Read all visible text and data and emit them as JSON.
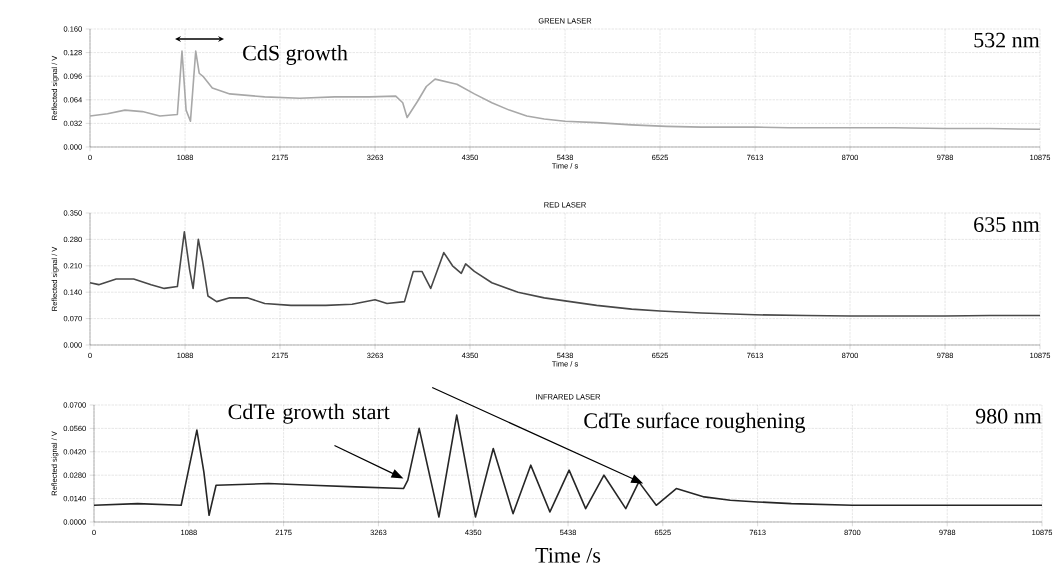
{
  "chart_data": [
    {
      "type": "line",
      "title": "GREEN LASER",
      "xlabel": "Time / s",
      "ylabel": "Reflected signal / V",
      "grid": true,
      "marker": "none",
      "line_style": "solid",
      "xlim": [
        0,
        10875
      ],
      "xticks": [
        0,
        1088,
        2175,
        3263,
        4350,
        5438,
        6525,
        7613,
        8700,
        9788,
        10875
      ],
      "ylim": [
        0,
        0.16
      ],
      "yticks": [
        {
          "value": 0,
          "label": "0.000"
        },
        {
          "value": 0.032,
          "label": "0.032"
        },
        {
          "value": 0.064,
          "label": "0.064"
        },
        {
          "value": 0.096,
          "label": "0.096"
        },
        {
          "value": 0.128,
          "label": "0.128"
        },
        {
          "value": 0.16,
          "label": "0.160"
        }
      ],
      "annotations": [
        "CdS growth",
        "532 nm"
      ],
      "series": [
        {
          "color": "#a8a8a8",
          "x": [
            0,
            200,
            400,
            600,
            800,
            1000,
            1053,
            1100,
            1150,
            1210,
            1250,
            1300,
            1400,
            1600,
            2000,
            2400,
            2800,
            3200,
            3500,
            3580,
            3630,
            3750,
            3850,
            3950,
            4200,
            4400,
            4600,
            4800,
            5000,
            5200,
            5438,
            5800,
            6200,
            6600,
            7000,
            7613,
            8000,
            8700,
            9200,
            9788,
            10300,
            10875
          ],
          "values": [
            0.042,
            0.045,
            0.05,
            0.048,
            0.042,
            0.044,
            0.13,
            0.05,
            0.035,
            0.13,
            0.1,
            0.095,
            0.08,
            0.072,
            0.068,
            0.066,
            0.068,
            0.068,
            0.069,
            0.06,
            0.04,
            0.062,
            0.082,
            0.092,
            0.085,
            0.072,
            0.06,
            0.05,
            0.042,
            0.038,
            0.035,
            0.033,
            0.03,
            0.028,
            0.027,
            0.027,
            0.026,
            0.026,
            0.026,
            0.025,
            0.025,
            0.024
          ]
        }
      ]
    },
    {
      "type": "line",
      "title": "RED LASER",
      "xlabel": "Time / s",
      "ylabel": "Reflected signal / V",
      "grid": true,
      "marker": "none",
      "line_style": "solid",
      "xlim": [
        0,
        10875
      ],
      "xticks": [
        0,
        1088,
        2175,
        3263,
        4350,
        5438,
        6525,
        7613,
        8700,
        9788,
        10875
      ],
      "ylim": [
        0,
        0.35
      ],
      "yticks": [
        {
          "value": 0,
          "label": "0.000"
        },
        {
          "value": 0.07,
          "label": "0.070"
        },
        {
          "value": 0.14,
          "label": "0.140"
        },
        {
          "value": 0.21,
          "label": "0.210"
        },
        {
          "value": 0.28,
          "label": "0.280"
        },
        {
          "value": 0.35,
          "label": "0.350"
        }
      ],
      "annotations": [
        "635 nm"
      ],
      "series": [
        {
          "color": "#484848",
          "x": [
            0,
            100,
            300,
            500,
            700,
            850,
            1000,
            1080,
            1140,
            1180,
            1240,
            1290,
            1350,
            1450,
            1600,
            1800,
            2000,
            2300,
            2700,
            3000,
            3263,
            3400,
            3600,
            3700,
            3800,
            3900,
            4050,
            4150,
            4250,
            4300,
            4400,
            4600,
            4900,
            5200,
            5438,
            5800,
            6200,
            6525,
            7000,
            7613,
            8200,
            8700,
            9200,
            9788,
            10300,
            10875
          ],
          "values": [
            0.165,
            0.16,
            0.175,
            0.175,
            0.16,
            0.15,
            0.155,
            0.3,
            0.2,
            0.15,
            0.28,
            0.22,
            0.13,
            0.115,
            0.125,
            0.125,
            0.11,
            0.105,
            0.105,
            0.108,
            0.12,
            0.11,
            0.115,
            0.195,
            0.195,
            0.15,
            0.245,
            0.21,
            0.19,
            0.215,
            0.195,
            0.165,
            0.14,
            0.125,
            0.117,
            0.105,
            0.095,
            0.09,
            0.085,
            0.08,
            0.078,
            0.077,
            0.077,
            0.077,
            0.078,
            0.078
          ]
        }
      ]
    },
    {
      "type": "line",
      "title": "INFRARED LASER",
      "xlabel": "Time /s",
      "ylabel": "Reflected signal / V",
      "grid": true,
      "marker": "none",
      "line_style": "solid",
      "xlim": [
        0,
        10875
      ],
      "xticks": [
        0,
        1088,
        2175,
        3263,
        4350,
        5438,
        6525,
        7613,
        8700,
        9788,
        10875
      ],
      "ylim": [
        0,
        0.07
      ],
      "yticks": [
        {
          "value": 0,
          "label": "0.0000"
        },
        {
          "value": 0.014,
          "label": "0.0140"
        },
        {
          "value": 0.028,
          "label": "0.0280"
        },
        {
          "value": 0.042,
          "label": "0.0420"
        },
        {
          "value": 0.056,
          "label": "0.0560"
        },
        {
          "value": 0.07,
          "label": "0.0700"
        }
      ],
      "annotations": [
        {
          "text": "CdTe growth start",
          "x": 3550,
          "y": 0.026
        },
        {
          "text": "CdTe surface roughening",
          "x": 6300,
          "y": 0.023
        },
        "980 nm"
      ],
      "series": [
        {
          "color": "#262626",
          "x": [
            0,
            500,
            1000,
            1080,
            1180,
            1260,
            1320,
            1400,
            2000,
            2500,
            3000,
            3550,
            3600,
            3730,
            3957,
            4161,
            4376,
            4580,
            4807,
            5010,
            5230,
            5450,
            5640,
            5850,
            6100,
            6250,
            6450,
            6680,
            7000,
            7300,
            7613,
            8000,
            8700,
            9200,
            9788,
            10300,
            10875
          ],
          "values": [
            0.01,
            0.011,
            0.01,
            0.03,
            0.055,
            0.03,
            0.004,
            0.022,
            0.023,
            0.022,
            0.021,
            0.02,
            0.025,
            0.056,
            0.003,
            0.064,
            0.003,
            0.044,
            0.005,
            0.034,
            0.006,
            0.031,
            0.008,
            0.028,
            0.008,
            0.024,
            0.01,
            0.02,
            0.015,
            0.013,
            0.012,
            0.011,
            0.01,
            0.01,
            0.01,
            0.01,
            0.01
          ]
        }
      ]
    }
  ]
}
